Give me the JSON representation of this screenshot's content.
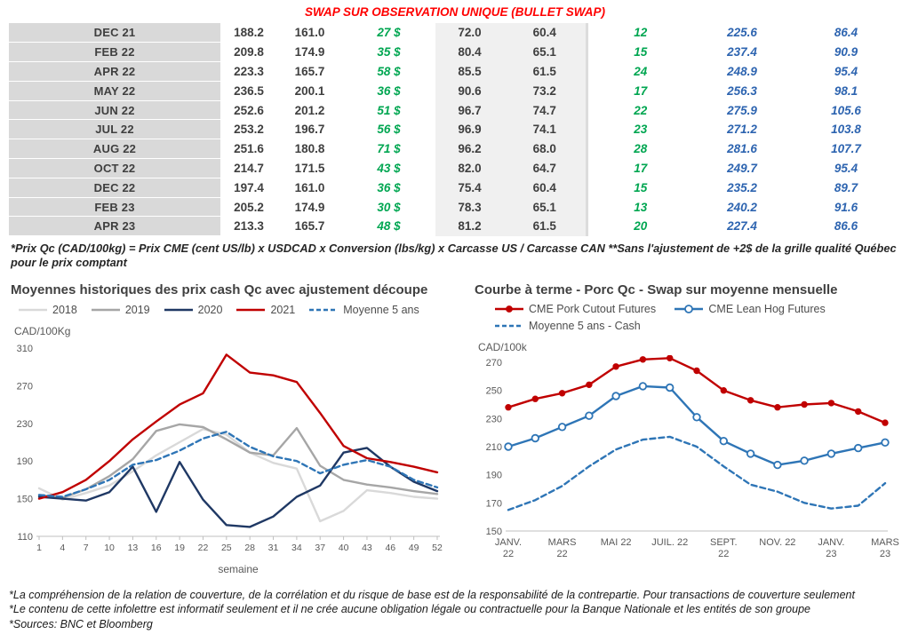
{
  "title": "SWAP SUR OBSERVATION UNIQUE (BULLET SWAP)",
  "colors": {
    "title_red": "#ff0000",
    "green": "#00a651",
    "blue": "#2d64b0"
  },
  "swap_table": {
    "rows": [
      [
        "DEC 21",
        "188.2",
        "161.0",
        "27 $",
        "72.0",
        "60.4",
        "12",
        "225.6",
        "86.4"
      ],
      [
        "FEB 22",
        "209.8",
        "174.9",
        "35 $",
        "80.4",
        "65.1",
        "15",
        "237.4",
        "90.9"
      ],
      [
        "APR 22",
        "223.3",
        "165.7",
        "58 $",
        "85.5",
        "61.5",
        "24",
        "248.9",
        "95.4"
      ],
      [
        "MAY 22",
        "236.5",
        "200.1",
        "36 $",
        "90.6",
        "73.2",
        "17",
        "256.3",
        "98.1"
      ],
      [
        "JUN 22",
        "252.6",
        "201.2",
        "51 $",
        "96.7",
        "74.7",
        "22",
        "275.9",
        "105.6"
      ],
      [
        "JUL 22",
        "253.2",
        "196.7",
        "56 $",
        "96.9",
        "74.1",
        "23",
        "271.2",
        "103.8"
      ],
      [
        "AUG 22",
        "251.6",
        "180.8",
        "71 $",
        "96.2",
        "68.0",
        "28",
        "281.6",
        "107.7"
      ],
      [
        "OCT 22",
        "214.7",
        "171.5",
        "43 $",
        "82.0",
        "64.7",
        "17",
        "249.7",
        "95.4"
      ],
      [
        "DEC 22",
        "197.4",
        "161.0",
        "36 $",
        "75.4",
        "60.4",
        "15",
        "235.2",
        "89.7"
      ],
      [
        "FEB 23",
        "205.2",
        "174.9",
        "30 $",
        "78.3",
        "65.1",
        "13",
        "240.2",
        "91.6"
      ],
      [
        "APR 23",
        "213.3",
        "165.7",
        "48 $",
        "81.2",
        "61.5",
        "20",
        "227.4",
        "86.6"
      ]
    ]
  },
  "table_note": "*Prix Qc (CAD/100kg) = Prix CME (cent US/lb) x USDCAD x Conversion (lbs/kg) x Carcasse US / Carcasse CAN **Sans l'ajustement de +2$ de la grille qualité Québec pour le prix comptant",
  "chart_data": [
    {
      "type": "line",
      "title": "Moyennes historiques des prix cash Qc avec ajustement découpe",
      "ylabel": "CAD/100Kg",
      "xlabel": "semaine",
      "ylim": [
        110,
        310
      ],
      "yticks": [
        110,
        150,
        190,
        230,
        270,
        310
      ],
      "x": [
        1,
        4,
        7,
        10,
        13,
        16,
        19,
        22,
        25,
        28,
        31,
        34,
        37,
        40,
        43,
        46,
        49,
        52
      ],
      "xticks": [
        1,
        4,
        7,
        10,
        13,
        16,
        19,
        22,
        25,
        28,
        31,
        34,
        37,
        40,
        43,
        46,
        49,
        52
      ],
      "legend_position": "top",
      "grid": false,
      "series": [
        {
          "name": "2018",
          "color": "#d9d9d9",
          "values": [
            161,
            149,
            156,
            164,
            179,
            196,
            210,
            224,
            218,
            199,
            188,
            182,
            126,
            137,
            159,
            156,
            152,
            150
          ]
        },
        {
          "name": "2019",
          "color": "#a6a6a6",
          "values": [
            154,
            151,
            160,
            174,
            192,
            222,
            229,
            226,
            213,
            199,
            196,
            225,
            185,
            170,
            165,
            162,
            158,
            155
          ]
        },
        {
          "name": "2020",
          "color": "#1f3864",
          "values": [
            152,
            150,
            148,
            157,
            184,
            136,
            189,
            149,
            122,
            120,
            131,
            152,
            164,
            199,
            204,
            184,
            168,
            158
          ]
        },
        {
          "name": "2021",
          "color": "#c00000",
          "values": [
            150,
            157,
            170,
            190,
            213,
            232,
            250,
            262,
            303,
            284,
            281,
            274,
            241,
            206,
            193,
            189,
            184,
            178
          ]
        },
        {
          "name": "Moyenne 5 ans",
          "color": "#2e75b6",
          "dash": true,
          "values": [
            154,
            152,
            160,
            170,
            186,
            191,
            201,
            214,
            221,
            205,
            195,
            190,
            177,
            186,
            191,
            184,
            170,
            162
          ]
        }
      ]
    },
    {
      "type": "line",
      "title": "Courbe à terme - Porc Qc - Swap sur moyenne mensuelle",
      "ylabel": "CAD/100k",
      "xlabel": "",
      "ylim": [
        150,
        270
      ],
      "yticks": [
        150,
        170,
        190,
        210,
        230,
        250,
        270
      ],
      "x": [
        0,
        1,
        2,
        3,
        4,
        5,
        6,
        7,
        8,
        9,
        10,
        11,
        12,
        13,
        14
      ],
      "xticks": [
        {
          "v": 0,
          "lines": [
            "JANV.",
            "22"
          ]
        },
        {
          "v": 2,
          "lines": [
            "MARS",
            "22"
          ]
        },
        {
          "v": 4,
          "lines": [
            "MAI 22"
          ]
        },
        {
          "v": 6,
          "lines": [
            "JUIL. 22"
          ]
        },
        {
          "v": 8,
          "lines": [
            "SEPT.",
            "22"
          ]
        },
        {
          "v": 10,
          "lines": [
            "NOV. 22"
          ]
        },
        {
          "v": 12,
          "lines": [
            "JANV.",
            "23"
          ]
        },
        {
          "v": 14,
          "lines": [
            "MARS",
            "23"
          ]
        }
      ],
      "legend_position": "top",
      "grid": false,
      "series": [
        {
          "name": "CME Pork Cutout Futures",
          "color": "#c00000",
          "marker": "filled",
          "values": [
            238,
            244,
            248,
            254,
            267,
            272,
            273,
            264,
            250,
            243,
            238,
            240,
            241,
            235,
            227
          ]
        },
        {
          "name": "CME Lean Hog Futures",
          "color": "#2e75b6",
          "marker": "open",
          "values": [
            210,
            216,
            224,
            232,
            246,
            253,
            252,
            231,
            214,
            205,
            197,
            200,
            205,
            209,
            213
          ]
        },
        {
          "name": "Moyenne 5 ans - Cash",
          "color": "#2e75b6",
          "dash": true,
          "values": [
            165,
            172,
            182,
            196,
            208,
            215,
            217,
            210,
            196,
            183,
            178,
            170,
            166,
            168,
            184
          ]
        }
      ]
    }
  ],
  "footnotes": [
    "*La compréhension de la relation de couverture, de la corrélation et du risque de base est de la responsabilité de la contrepartie. Pour transactions de couverture seulement",
    "*Le contenu de cette infolettre est informatif seulement et il ne crée aucune obligation légale ou contractuelle pour la Banque Nationale et les entités de son groupe",
    "*Sources: BNC et Bloomberg"
  ]
}
